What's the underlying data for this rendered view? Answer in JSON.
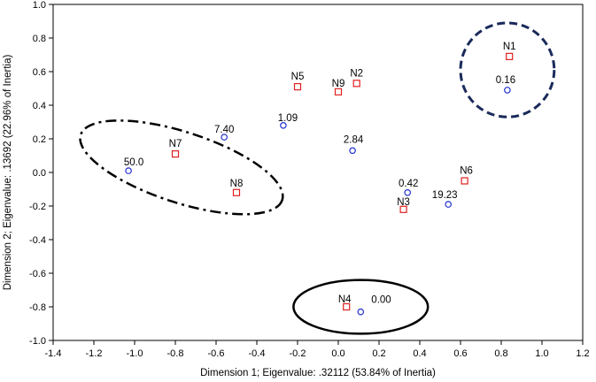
{
  "chart_data": {
    "type": "scatter",
    "xlabel": "Dimension 1; Eigenvalue: .32112 (53.84% of Inertia)",
    "ylabel": "Dimension 2; Eigenvalue: .13692 (22.96% of Inertia)",
    "xlim": [
      -1.4,
      1.2
    ],
    "ylim": [
      -1.0,
      1.0
    ],
    "xticks": [
      "-1.4",
      "-1.2",
      "-1.0",
      "-0.8",
      "-0.6",
      "-0.4",
      "-0.2",
      "0.0",
      "0.2",
      "0.4",
      "0.6",
      "0.8",
      "1.0",
      "1.2"
    ],
    "yticks": [
      "1.0",
      "0.8",
      "0.6",
      "0.4",
      "0.2",
      "0.0",
      "-0.2",
      "-0.4",
      "-0.6",
      "-0.8",
      "-1.0"
    ],
    "grid": false,
    "series": [
      {
        "marker": "square",
        "color": "#e02020",
        "points": [
          {
            "label": "N1",
            "x": 0.84,
            "y": 0.69
          },
          {
            "label": "N2",
            "x": 0.09,
            "y": 0.53
          },
          {
            "label": "N3",
            "x": 0.32,
            "y": -0.22
          },
          {
            "label": "N4",
            "x": 0.04,
            "y": -0.8
          },
          {
            "label": "N5",
            "x": -0.2,
            "y": 0.51
          },
          {
            "label": "N6",
            "x": 0.62,
            "y": -0.05
          },
          {
            "label": "N7",
            "x": -0.8,
            "y": 0.11
          },
          {
            "label": "N8",
            "x": -0.5,
            "y": -0.12
          },
          {
            "label": "N9",
            "x": 0.0,
            "y": 0.48
          }
        ]
      },
      {
        "marker": "circle",
        "color": "#2030d0",
        "points": [
          {
            "label": "0.16",
            "x": 0.83,
            "y": 0.49
          },
          {
            "label": "1.09",
            "x": -0.27,
            "y": 0.28
          },
          {
            "label": "2.84",
            "x": 0.07,
            "y": 0.13
          },
          {
            "label": "7.40",
            "x": -0.56,
            "y": 0.21
          },
          {
            "label": "50.0",
            "x": -1.03,
            "y": 0.01
          },
          {
            "label": "0.42",
            "x": 0.34,
            "y": -0.12
          },
          {
            "label": "19.23",
            "x": 0.54,
            "y": -0.19
          },
          {
            "label": "0.00",
            "x": 0.11,
            "y": -0.83
          }
        ]
      }
    ],
    "annotations": [
      {
        "shape": "ellipse",
        "style": "dashed",
        "cx": 0.83,
        "cy": 0.61,
        "rx": 0.23,
        "ry": 0.28
      },
      {
        "shape": "ellipse",
        "style": "dash-dot",
        "cx": -0.77,
        "cy": 0.03,
        "rx": 0.52,
        "ry": 0.21,
        "angle": 18
      },
      {
        "shape": "ellipse",
        "style": "solid",
        "cx": 0.11,
        "cy": -0.8,
        "rx": 0.33,
        "ry": 0.16
      }
    ]
  }
}
